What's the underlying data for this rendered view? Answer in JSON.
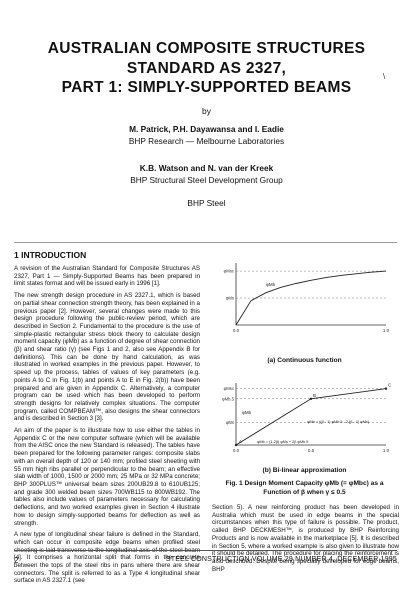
{
  "title_line1": "AUSTRALIAN COMPOSITE STRUCTURES",
  "title_line2": "STANDARD AS 2327,",
  "title_line3": "PART 1: SIMPLY-SUPPORTED BEAMS",
  "by": "by",
  "authors1": "M. Patrick, P.H. Dayawansa and I. Eadie",
  "affiliation1": "BHP Research — Melbourne Laboratories",
  "authors2": "K.B. Watson and N. van der Kreek",
  "affiliation2": "BHP Structural Steel Development Group",
  "company": "BHP Steel",
  "section_heading": "1  INTRODUCTION",
  "left_paragraphs": [
    "A revision of the Australian Standard for Composite Structures AS 2327, Part 1 — Simply-Supported Beams has been prepared in limit states format and will be issued early in 1996 [1].",
    "The new strength design procedure in AS 2327.1, which is based on partial shear connection strength theory, has been explained in a previous paper [2]. However, several changes were made to this design procedure following the public-review period, which are described in Section 2. Fundamental to the procedure is the use of simple-plastic rectangular stress block theory to calculate design moment capacity (φMb) as a function of degree of shear connection (β) and shear ratio (γ) (see Figs 1 and 2, also see Appendix B for definitions). This can be done by hand calculation, as was illustrated in worked examples in the previous paper. However, to speed up the process, tables of values of key parameters (e.g. points A to C in Fig. 1(b) and points A to E in Fig. 2(b)) have been prepared and are given in Appendix C. Alternatively, a computer program can be used which has been developed to perform strength designs for relatively complex situations. The computer program, called COMPBEAM™, also designs the shear connectors and is described in Section 3 [3].",
    "An aim of the paper is to illustrate how to use either the tables in Appendix C or the new computer software (which will be available from the AISC once the new Standard is released). The tables have been prepared for the following parameter ranges: composite slabs with an overall depth of 120 or 140 mm; profiled steel sheeting with 55 mm high ribs parallel or perpendicular to the beam; an effective slab width of 1000, 1500 or 2000 mm; 25 MPa or 32 MPa concrete; BHP 300PLUS™ universal beam sizes 200UB29.8 to 610UB125; and grade 300 welded beam sizes 700WB115 to 800WB192. The tables also include values of parameters necessary for calculating deflections, and two worked examples given in Section 4 illustrate how to design simply-supported beams for deflection as well as strength.",
    "A new type of longitudinal shear failure is defined in the Standard, which can occur in composite edge beams when profiled steel sheeting is laid transverse to the longitudinal axis of the steel beam [4]. It comprises a horizontal split that forms in the concrete between the tops of the steel ribs in pans where there are shear connectors. The split is referred to as a Type 4 longitudinal shear surface in AS 2327.1 (see"
  ],
  "right_paragraph": "Section 5). A new reinforcing product has been developed in Australia which must be used in edge beams in the special circumstances when this type of failure is possible. The product, called BHP DECKMESH™, is produced by BHP Reinforcing Products and is now available in the marketplace [5]. It is described in Section 5, where a worked example is also given to illustrate how it should be detailed. The procedure for placing the reinforcement is also described. Despite being specially developed for edge beams, BHP",
  "fig_a_caption": "(a) Continuous function",
  "fig_b_caption": "(b) Bi-linear approximation",
  "figure_caption_line1": "Fig. 1 Design Moment Capacity φMb (= φMbc) as a",
  "figure_caption_line2": "Function of β when γ ≤ 0.5",
  "chart_data": [
    {
      "type": "line",
      "title": "(a) Continuous function",
      "x": [
        0.0,
        0.1,
        0.2,
        0.3,
        0.4,
        0.5,
        0.6,
        0.7,
        0.8,
        0.9,
        1.0
      ],
      "series": [
        {
          "name": "φMb",
          "values": [
            0.0,
            0.45,
            0.6,
            0.7,
            0.77,
            0.83,
            0.88,
            0.92,
            0.95,
            0.98,
            1.0
          ]
        }
      ],
      "x_ticks": [
        "0.0",
        "1.0"
      ],
      "y_tick_labels": [
        "φMsc",
        "φMs"
      ],
      "xlim": [
        0,
        1
      ],
      "ylim": [
        0,
        1.15
      ]
    },
    {
      "type": "line",
      "title": "(b) Bi-linear approximation",
      "x": [
        0.0,
        0.5,
        1.0
      ],
      "series": [
        {
          "name": "φMb",
          "values": [
            0.0,
            0.82,
            1.0
          ]
        }
      ],
      "point_labels": [
        "A",
        "B",
        "C"
      ],
      "x_ticks": [
        "0.0",
        "0.5",
        "1.0"
      ],
      "y_tick_labels": [
        "φMsc",
        "φMb.5",
        "φMs"
      ],
      "annotations": [
        "φMb = {(β - 1) φMb.5 - 2 (β - 1) φMs}",
        "φMb = (1-2β) φMs + 2β φMb.5"
      ],
      "xlim": [
        0,
        1
      ],
      "ylim": [
        0,
        1.1
      ]
    }
  ],
  "journal": "STEEL CONSTRUCTION VOLUME 29 NUMBER 4, DECEMBER 1995",
  "page_number": "2",
  "corner_mark": "\\"
}
